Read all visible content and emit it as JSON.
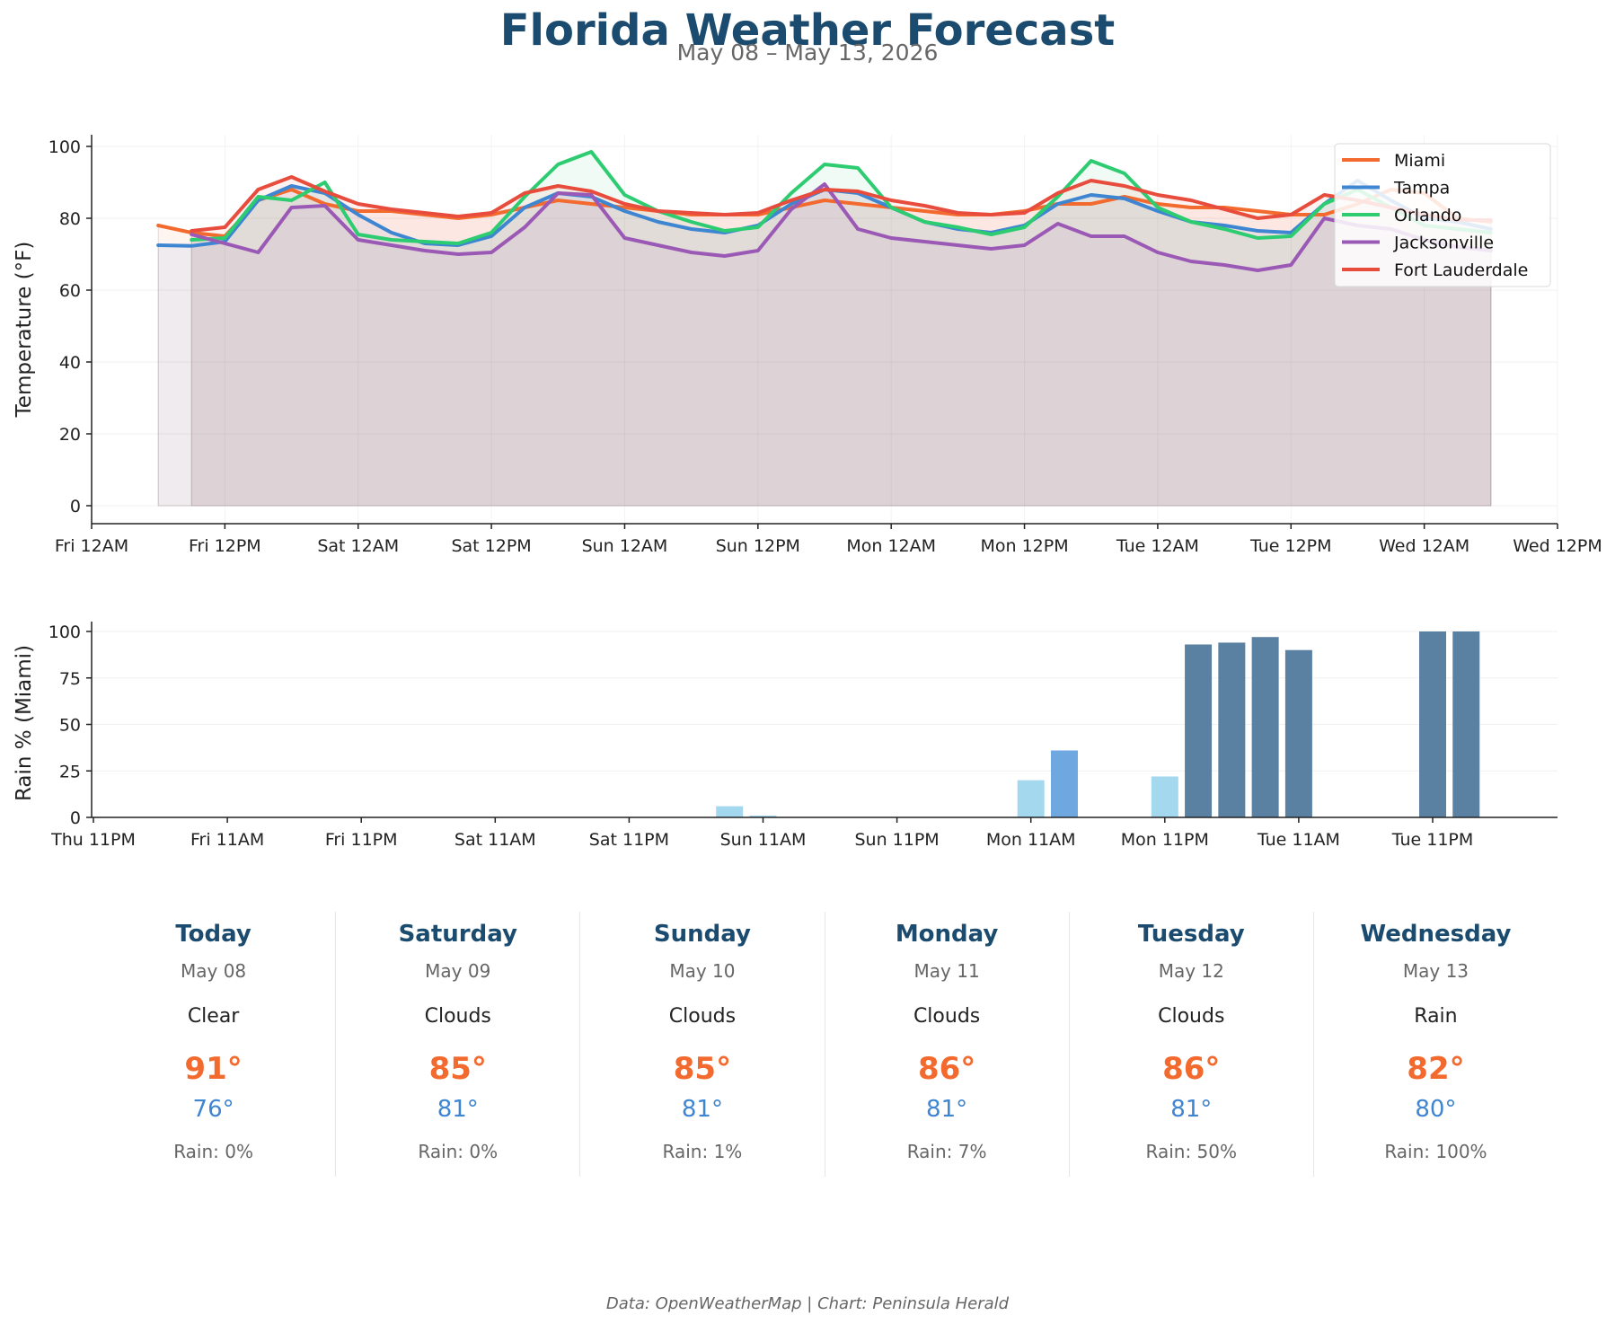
{
  "header": {
    "title": "Florida Weather Forecast",
    "subtitle": "May 08 – May 13, 2026"
  },
  "chart_data": [
    {
      "type": "line",
      "ylabel": "Temperature (°F)",
      "ylim": [
        0,
        100
      ],
      "yticks": [
        0,
        20,
        40,
        60,
        80,
        100
      ],
      "x_unit": "hours from Fri 12AM",
      "xlim": [
        0,
        132
      ],
      "xtick_labels": [
        "Fri 12AM",
        "Fri 12PM",
        "Sat 12AM",
        "Sat 12PM",
        "Sun 12AM",
        "Sun 12PM",
        "Mon 12AM",
        "Mon 12PM",
        "Tue 12AM",
        "Tue 12PM",
        "Wed 12AM",
        "Wed 12PM"
      ],
      "grid": true,
      "legend_position": "top-right",
      "series": [
        {
          "name": "Miami",
          "color": "#f26a2e",
          "x": [
            6,
            9,
            12,
            15,
            18,
            21,
            24,
            27,
            30,
            33,
            36,
            39,
            42,
            45,
            48,
            51,
            54,
            57,
            60,
            63,
            66,
            69,
            72,
            75,
            78,
            81,
            84,
            87,
            90,
            93,
            96,
            99,
            102,
            105,
            108,
            111,
            114,
            117,
            120,
            123,
            126
          ],
          "y": [
            78,
            76,
            75,
            85,
            88,
            84,
            82,
            82,
            81,
            80,
            81,
            83,
            85,
            84,
            83,
            82,
            81,
            81,
            81,
            83,
            85,
            84,
            83,
            82,
            81,
            81,
            82,
            84,
            84,
            86,
            84,
            83,
            83,
            82,
            81,
            81,
            84,
            88,
            87,
            80,
            79
          ]
        },
        {
          "name": "Tampa",
          "color": "#3e86d1",
          "x": [
            6,
            9,
            12,
            15,
            18,
            21,
            24,
            27,
            30,
            33,
            36,
            39,
            42,
            45,
            48,
            51,
            54,
            57,
            60,
            63,
            66,
            69,
            72,
            75,
            78,
            81,
            84,
            87,
            90,
            93,
            96,
            99,
            102,
            105,
            108,
            111,
            114,
            117,
            120,
            123,
            126
          ],
          "y": [
            72.5,
            72.3,
            73.5,
            85,
            89,
            87,
            81,
            76,
            73,
            72.5,
            75,
            83,
            87,
            86,
            82,
            79,
            77,
            76,
            78,
            84,
            88,
            87,
            83,
            79,
            77,
            76,
            78,
            84,
            86.5,
            85.5,
            82,
            79,
            78,
            76.5,
            76,
            84,
            90.5,
            85,
            80,
            79,
            77
          ]
        },
        {
          "name": "Orlando",
          "color": "#2ecc71",
          "x": [
            9,
            12,
            15,
            18,
            21,
            24,
            27,
            30,
            33,
            36,
            39,
            42,
            45,
            48,
            51,
            54,
            57,
            60,
            63,
            66,
            69,
            72,
            75,
            78,
            81,
            84,
            87,
            90,
            93,
            96,
            99,
            102,
            105,
            108,
            111,
            114,
            117,
            120,
            123,
            126
          ],
          "y": [
            74,
            74.5,
            86,
            85,
            90,
            75.5,
            74,
            73.5,
            73,
            76,
            86,
            95,
            98.5,
            86.5,
            82,
            79,
            76.5,
            77.5,
            87,
            95,
            94,
            83,
            79,
            77.5,
            75.5,
            77.5,
            86,
            96,
            92.5,
            83,
            79,
            77,
            74.5,
            75,
            84,
            88,
            83,
            78,
            77,
            76
          ]
        },
        {
          "name": "Jacksonville",
          "color": "#9b59b6",
          "x": [
            9,
            12,
            15,
            18,
            21,
            24,
            27,
            30,
            33,
            36,
            39,
            42,
            45,
            48,
            51,
            54,
            57,
            60,
            63,
            66,
            69,
            72,
            75,
            78,
            81,
            84,
            87,
            90,
            93,
            96,
            99,
            102,
            105,
            108,
            111,
            114,
            117,
            120,
            123,
            126
          ],
          "y": [
            75.5,
            73,
            70.5,
            83,
            83.5,
            74,
            72.5,
            71,
            70,
            70.5,
            77.5,
            87,
            86.5,
            74.5,
            72.5,
            70.5,
            69.5,
            71,
            82.5,
            89.5,
            77,
            74.5,
            73.5,
            72.5,
            71.5,
            72.5,
            78.5,
            75,
            75,
            70.5,
            68,
            67,
            65.5,
            67,
            80,
            78,
            77,
            74,
            72,
            71
          ]
        },
        {
          "name": "Fort Lauderdale",
          "color": "#e74c3c",
          "x": [
            9,
            12,
            15,
            18,
            21,
            24,
            27,
            30,
            33,
            36,
            39,
            42,
            45,
            48,
            51,
            54,
            57,
            60,
            63,
            66,
            69,
            72,
            75,
            78,
            81,
            84,
            87,
            90,
            93,
            96,
            99,
            102,
            105,
            108,
            111,
            114,
            117,
            120,
            123,
            126
          ],
          "y": [
            76.5,
            77.5,
            88,
            91.5,
            87.5,
            84,
            82.5,
            81.5,
            80.5,
            81.5,
            87,
            89,
            87.5,
            84,
            82,
            81.5,
            81,
            81.5,
            85,
            88,
            87.5,
            85,
            83.5,
            81.5,
            81,
            81.5,
            87,
            90.5,
            89,
            86.5,
            85,
            82.5,
            80,
            81,
            86.5,
            85,
            83,
            81,
            79.5,
            79.5
          ]
        }
      ]
    },
    {
      "type": "bar",
      "ylabel": "Rain % (Miami)",
      "ylim": [
        0,
        100
      ],
      "yticks": [
        0,
        25,
        50,
        75,
        100
      ],
      "x_unit": "hours from Thu 11PM",
      "xlim": [
        0,
        132
      ],
      "xtick_labels": [
        "Thu 11PM",
        "Fri 11AM",
        "Fri 11PM",
        "Sat 11AM",
        "Sat 11PM",
        "Sun 11AM",
        "Sun 11PM",
        "Mon 11AM",
        "Mon 11PM",
        "Tue 11AM",
        "Tue 11PM"
      ],
      "grid": true,
      "x": [
        57,
        60,
        84,
        87,
        96,
        99,
        102,
        105,
        108,
        120,
        123
      ],
      "values": [
        6,
        1,
        20,
        36,
        22,
        93,
        94,
        97,
        90,
        100,
        100
      ],
      "colors": [
        "#a4d8ee",
        "#a4d8ee",
        "#a4d8ee",
        "#6fa7e0",
        "#a4d8ee",
        "#5a80a2",
        "#5a80a2",
        "#5a80a2",
        "#5a80a2",
        "#5a80a2",
        "#5a80a2"
      ]
    }
  ],
  "forecast": [
    {
      "day": "Today",
      "date": "May 08",
      "condition": "Clear",
      "high": "91°",
      "low": "76°",
      "rain": "Rain: 0%"
    },
    {
      "day": "Saturday",
      "date": "May 09",
      "condition": "Clouds",
      "high": "85°",
      "low": "81°",
      "rain": "Rain: 0%"
    },
    {
      "day": "Sunday",
      "date": "May 10",
      "condition": "Clouds",
      "high": "85°",
      "low": "81°",
      "rain": "Rain: 1%"
    },
    {
      "day": "Monday",
      "date": "May 11",
      "condition": "Clouds",
      "high": "86°",
      "low": "81°",
      "rain": "Rain: 7%"
    },
    {
      "day": "Tuesday",
      "date": "May 12",
      "condition": "Clouds",
      "high": "86°",
      "low": "81°",
      "rain": "Rain: 50%"
    },
    {
      "day": "Wednesday",
      "date": "May 13",
      "condition": "Rain",
      "high": "82°",
      "low": "80°",
      "rain": "Rain: 100%"
    }
  ],
  "footer": {
    "credit": "Data: OpenWeatherMap | Chart: Peninsula Herald"
  }
}
